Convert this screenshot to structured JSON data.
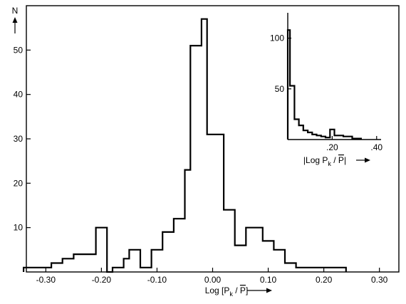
{
  "chart_data": [
    {
      "type": "bar",
      "variant": "step-histogram",
      "xlabel": "Log [P_k / P̄]",
      "xlabel_parts": {
        "pre": "Log [P",
        "sub": "k",
        "mid": " / ",
        "bar": "P",
        "post": "]"
      },
      "ylabel": "N",
      "xlim": [
        -0.335,
        0.335
      ],
      "ylim": [
        0,
        60
      ],
      "xticks": [
        -0.3,
        -0.2,
        -0.1,
        0.0,
        0.1,
        0.2,
        0.3
      ],
      "xtick_labels": [
        "-0.30",
        "-0.20",
        "-0.10",
        "0.00",
        "0.10",
        "0.20",
        "0.30"
      ],
      "yticks": [
        10,
        20,
        30,
        40,
        50
      ],
      "ytick_labels": [
        "10",
        "20",
        "30",
        "40",
        "50"
      ],
      "bin_edges": [
        -0.34,
        -0.32,
        -0.29,
        -0.27,
        -0.25,
        -0.23,
        -0.21,
        -0.19,
        -0.18,
        -0.16,
        -0.15,
        -0.13,
        -0.11,
        -0.09,
        -0.07,
        -0.05,
        -0.04,
        -0.02,
        -0.01,
        0.01,
        0.02,
        0.04,
        0.06,
        0.07,
        0.09,
        0.11,
        0.13,
        0.15,
        0.16,
        0.18,
        0.24
      ],
      "values": [
        1,
        1,
        2,
        3,
        4,
        4,
        10,
        0,
        1,
        3,
        5,
        1,
        5,
        9,
        12,
        23,
        51,
        57,
        31,
        31,
        14,
        6,
        10,
        10,
        7,
        5,
        2,
        1,
        1,
        1
      ],
      "grid": false
    },
    {
      "type": "bar",
      "variant": "step-histogram-inset",
      "xlabel": "|Log P_k / P̄|",
      "xlabel_parts": {
        "pre": "|Log P",
        "sub": "k",
        "mid": " / ",
        "bar": "P",
        "post": "|"
      },
      "xlim": [
        0,
        0.42
      ],
      "ylim": [
        0,
        125
      ],
      "xticks": [
        0.2,
        0.4
      ],
      "xtick_labels": [
        ".20",
        ".40"
      ],
      "yticks": [
        50,
        100
      ],
      "ytick_labels": [
        "50",
        "100"
      ],
      "bin_edges": [
        0.0,
        0.01,
        0.03,
        0.05,
        0.07,
        0.09,
        0.11,
        0.13,
        0.15,
        0.17,
        0.19,
        0.21,
        0.25,
        0.29,
        0.33
      ],
      "values": [
        108,
        53,
        20,
        14,
        9,
        7,
        5,
        4,
        3,
        2,
        10,
        4,
        3,
        1
      ],
      "grid": false
    }
  ]
}
